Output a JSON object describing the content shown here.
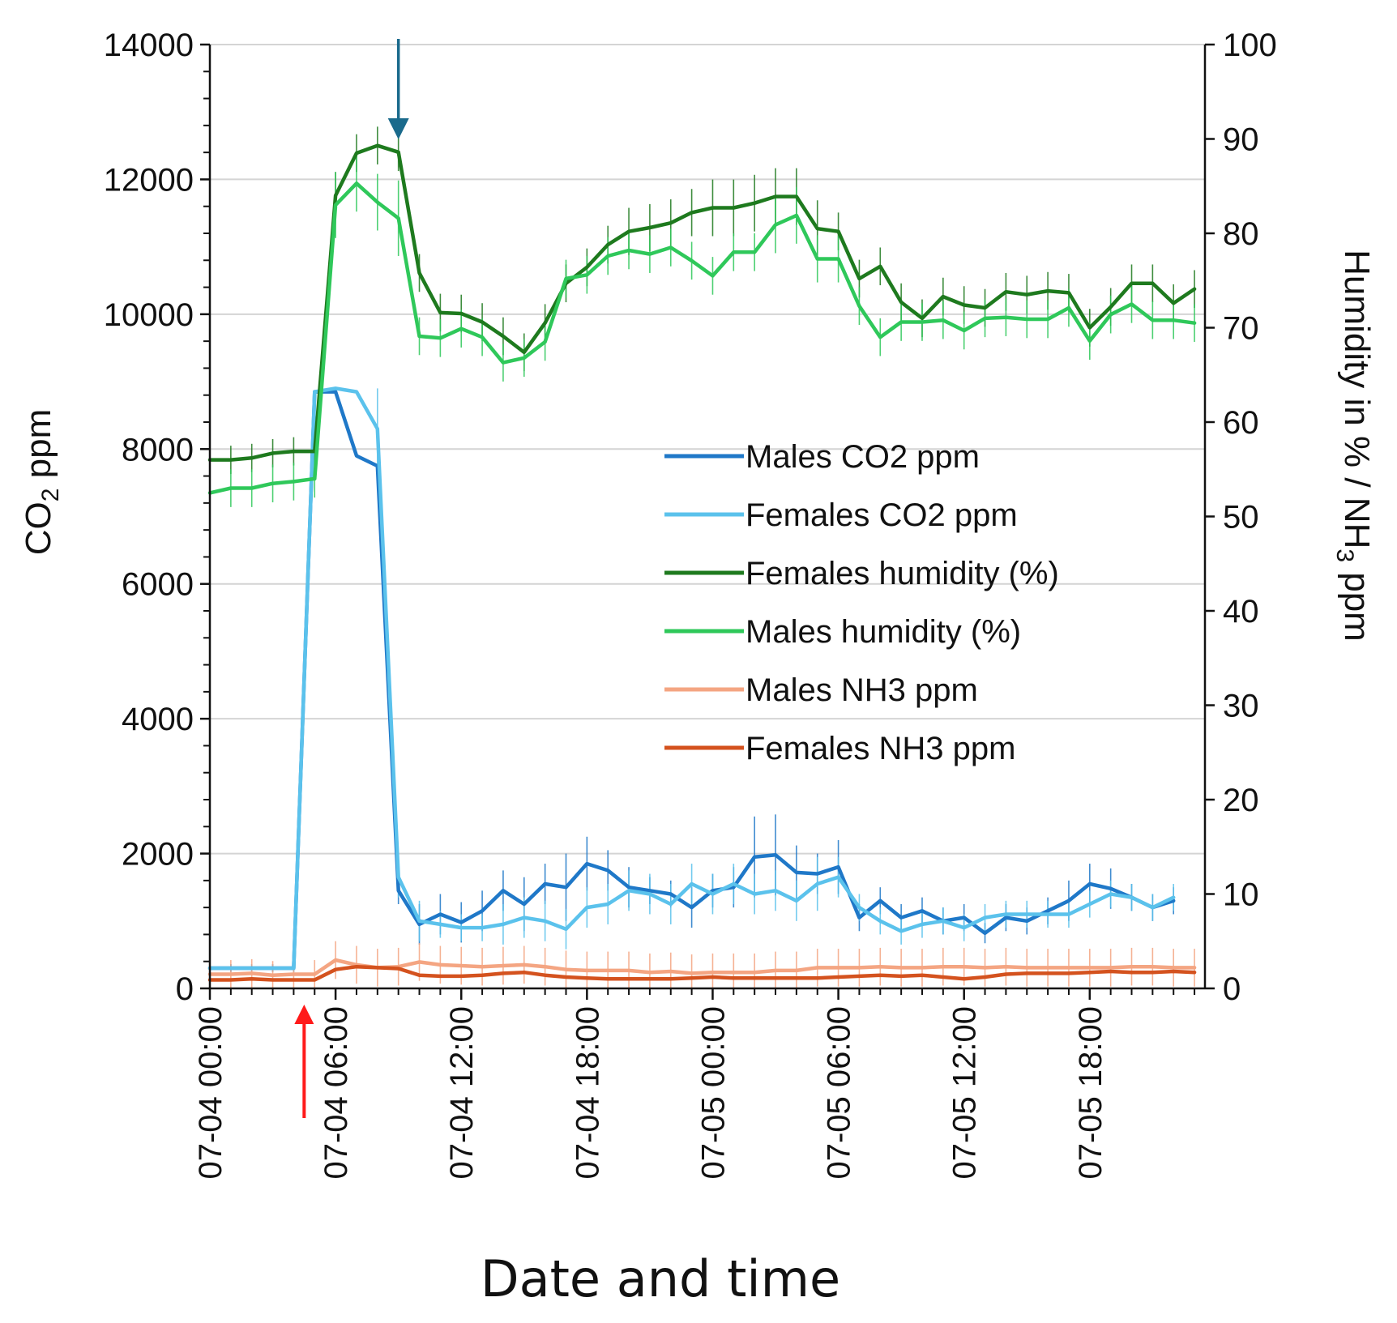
{
  "chart_data": {
    "type": "line",
    "xlabel": "Date and time",
    "ylabel_left": {
      "main": "CO",
      "sub": "2",
      "rest": " ppm"
    },
    "ylabel_right": {
      "main": "Humidity in % / NH",
      "sub": "3",
      "rest": " ppm"
    },
    "ylim_left": [
      0,
      14000
    ],
    "ylim_right": [
      0,
      100
    ],
    "yticks_left": [
      "0",
      "2000",
      "4000",
      "6000",
      "8000",
      "10000",
      "12000",
      "14000"
    ],
    "yticks_right": [
      "0",
      "10",
      "20",
      "30",
      "40",
      "50",
      "60",
      "70",
      "80",
      "90",
      "100"
    ],
    "x_hours": [
      0,
      1,
      2,
      3,
      4,
      5,
      6,
      7,
      8,
      9,
      10,
      11,
      12,
      13,
      14,
      15,
      16,
      17,
      18,
      19,
      20,
      21,
      22,
      23,
      24,
      25,
      26,
      27,
      28,
      29,
      30,
      31,
      32,
      33,
      34,
      35,
      36,
      37,
      38,
      39,
      40,
      41,
      42,
      43,
      44,
      45,
      46,
      47
    ],
    "x_range_hours": [
      0,
      47.5
    ],
    "x_tick_hours": [
      0,
      6,
      12,
      18,
      24,
      30,
      36,
      42
    ],
    "xticks": [
      "07-04 00:00",
      "07-04 06:00",
      "07-04 12:00",
      "07-04 18:00",
      "07-05 00:00",
      "07-05 06:00",
      "07-05 12:00",
      "07-05 18:00"
    ],
    "grid": true,
    "legend_position": "center-right",
    "series": [
      {
        "name": "Males CO2 ppm",
        "axis": "left",
        "color": "#1f78c8",
        "values": [
          300,
          300,
          300,
          300,
          300,
          8850,
          8850,
          7900,
          7750,
          1450,
          950,
          1100,
          980,
          1150,
          1450,
          1250,
          1550,
          1500,
          1850,
          1750,
          1500,
          1450,
          1400,
          1200,
          1450,
          1500,
          1950,
          1980,
          1720,
          1700,
          1800,
          1050,
          1300,
          1050,
          1150,
          1000,
          1050,
          820,
          1050,
          1000,
          1150,
          1300,
          1550,
          1480,
          1350,
          1200,
          1300,
          null
        ],
        "errors": [
          60,
          60,
          60,
          60,
          60,
          0,
          0,
          0,
          0,
          200,
          300,
          300,
          300,
          300,
          300,
          400,
          300,
          500,
          400,
          300,
          300,
          200,
          200,
          300,
          250,
          300,
          600,
          600,
          400,
          300,
          400,
          200,
          200,
          200,
          200,
          200,
          200,
          150,
          200,
          200,
          200,
          300,
          300,
          300,
          200,
          200,
          200,
          null
        ]
      },
      {
        "name": "Females CO2 ppm",
        "axis": "left",
        "color": "#5bc2ec",
        "values": [
          300,
          300,
          300,
          300,
          300,
          8850,
          8900,
          8850,
          8300,
          1650,
          1000,
          950,
          900,
          900,
          950,
          1050,
          1000,
          880,
          1200,
          1250,
          1450,
          1400,
          1250,
          1550,
          1400,
          1550,
          1400,
          1450,
          1300,
          1550,
          1650,
          1200,
          1000,
          850,
          950,
          1000,
          900,
          1050,
          1100,
          1100,
          1100,
          1100,
          1250,
          1400,
          1350,
          1200,
          1350,
          null
        ],
        "errors": [
          60,
          60,
          60,
          60,
          60,
          0,
          0,
          0,
          600,
          300,
          300,
          200,
          200,
          200,
          300,
          300,
          300,
          300,
          300,
          300,
          300,
          300,
          300,
          300,
          300,
          300,
          300,
          300,
          300,
          400,
          300,
          200,
          200,
          200,
          200,
          200,
          200,
          200,
          200,
          200,
          200,
          200,
          200,
          200,
          200,
          200,
          200,
          null
        ]
      },
      {
        "name": "Females humidity (%)",
        "axis": "right",
        "color": "#1e7a1e",
        "values": [
          56,
          56,
          56.2,
          56.7,
          56.9,
          56.9,
          84,
          88.5,
          89.3,
          88.6,
          75.8,
          71.6,
          71.5,
          70.6,
          69.1,
          67.4,
          70.5,
          74.7,
          76.4,
          78.8,
          80.2,
          80.6,
          81.1,
          82.2,
          82.7,
          82.7,
          83.2,
          83.9,
          83.9,
          80.5,
          80.2,
          75.2,
          76.5,
          72.7,
          71,
          73.3,
          72.4,
          72.1,
          73.8,
          73.5,
          73.9,
          73.7,
          70,
          72.2,
          74.7,
          74.7,
          72.6,
          74.1
        ],
        "errors": [
          1.5,
          1.5,
          1.5,
          1.5,
          1.5,
          1.5,
          2.5,
          2,
          2,
          2,
          2,
          2,
          2,
          2,
          2,
          2,
          2,
          2,
          2,
          2,
          2.5,
          2.5,
          2.5,
          2.5,
          3,
          3,
          3,
          3,
          3,
          3,
          2,
          2,
          2,
          2,
          2,
          2,
          2,
          2,
          2,
          2,
          2,
          2,
          2,
          2,
          2,
          2,
          2,
          2
        ]
      },
      {
        "name": "Males humidity (%)",
        "axis": "right",
        "color": "#2fc85a",
        "values": [
          52.5,
          53,
          53,
          53.5,
          53.7,
          54,
          83,
          85.3,
          83.3,
          81.6,
          69.1,
          68.9,
          69.9,
          69,
          66.3,
          66.8,
          68.5,
          75.2,
          75.6,
          77.6,
          78.2,
          77.8,
          78.5,
          77.1,
          75.5,
          78,
          78,
          80.9,
          81.9,
          77.3,
          77.3,
          72.3,
          69,
          70.6,
          70.6,
          70.8,
          69.7,
          71,
          71.1,
          70.9,
          70.9,
          72.1,
          68.6,
          71.4,
          72.5,
          70.8,
          70.8,
          70.5
        ],
        "errors": [
          2,
          2,
          2,
          2,
          2,
          2,
          3.5,
          3,
          3,
          4,
          2,
          2,
          2,
          2,
          2,
          2,
          2,
          2,
          2,
          2,
          2,
          2,
          2,
          2,
          2,
          2,
          2,
          3,
          3,
          2.5,
          2.5,
          2,
          2,
          2,
          2,
          2,
          2,
          2,
          2,
          2,
          2,
          2,
          2,
          2,
          2,
          2,
          2,
          2
        ]
      },
      {
        "name": "Males NH3 ppm",
        "axis": "right",
        "color": "#f4a582",
        "values": [
          1.5,
          1.5,
          1.6,
          1.4,
          1.5,
          1.5,
          3,
          2.5,
          2.2,
          2.3,
          2.8,
          2.5,
          2.4,
          2.3,
          2.4,
          2.5,
          2.3,
          2,
          1.9,
          1.9,
          1.9,
          1.7,
          1.8,
          1.6,
          1.7,
          1.7,
          1.7,
          1.9,
          1.9,
          2.2,
          2.2,
          2.2,
          2.3,
          2.2,
          2.2,
          2.3,
          2.3,
          2.2,
          2.3,
          2.2,
          2.2,
          2.2,
          2.2,
          2.2,
          2.3,
          2.3,
          2.2,
          2.2
        ],
        "errors": [
          1.5,
          1.5,
          1.5,
          1.5,
          1.5,
          1.5,
          2,
          2,
          2,
          2,
          2,
          2,
          2,
          2,
          2,
          2,
          2,
          2,
          2,
          2,
          2,
          2,
          2,
          2,
          2,
          2,
          2,
          2,
          2,
          2,
          2,
          2,
          2,
          2,
          2,
          2,
          2,
          2,
          2,
          2,
          2,
          2,
          2,
          2,
          2,
          2,
          2,
          2
        ]
      },
      {
        "name": "Females NH3 ppm",
        "axis": "right",
        "color": "#d4521e",
        "values": [
          0.9,
          0.9,
          1,
          0.9,
          0.9,
          0.9,
          2,
          2.3,
          2.2,
          2.1,
          1.4,
          1.3,
          1.3,
          1.4,
          1.6,
          1.7,
          1.4,
          1.2,
          1.1,
          1,
          1,
          1,
          1,
          1.1,
          1.2,
          1.1,
          1.1,
          1.1,
          1.1,
          1.1,
          1.2,
          1.3,
          1.4,
          1.3,
          1.4,
          1.2,
          1,
          1.2,
          1.5,
          1.6,
          1.6,
          1.6,
          1.7,
          1.8,
          1.7,
          1.7,
          1.8,
          1.7
        ],
        "errors": []
      }
    ],
    "annotations": [
      {
        "type": "arrow-down",
        "hour": 9,
        "color": "#1a6a8c"
      },
      {
        "type": "arrow-up",
        "hour": 4.5,
        "color": "#ff1a1a"
      }
    ]
  }
}
